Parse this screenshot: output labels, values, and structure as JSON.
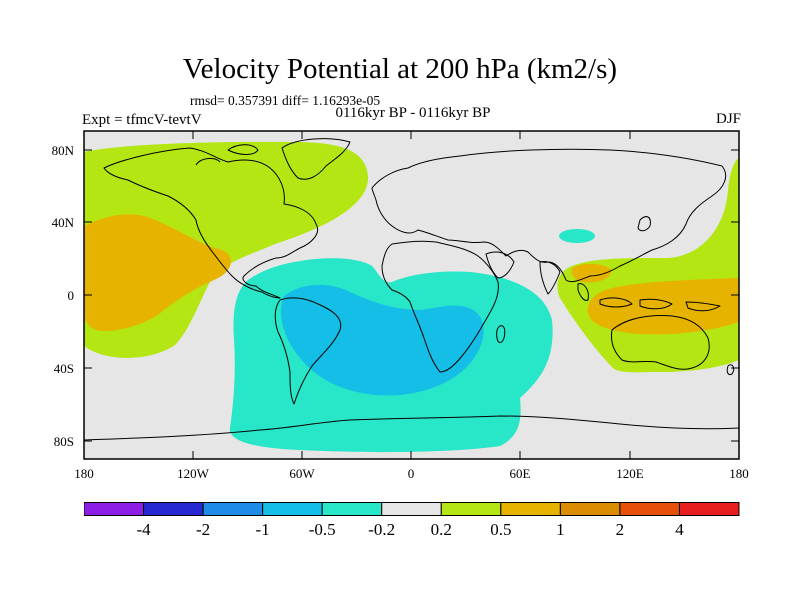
{
  "title": "Velocity Potential at 200 hPa (km2/s)",
  "stats": "rmsd= 0.357391  diff= 1.16293e-05",
  "subtitle": "0116kyr BP - 0116kyr BP",
  "left_label": "Expt = tfmcV-tevtV",
  "right_label": "DJF",
  "lat_ticks": [
    "80N",
    "40N",
    "0",
    "40S",
    "80S"
  ],
  "lon_ticks": [
    "180",
    "120W",
    "60W",
    "0",
    "60E",
    "120E",
    "180"
  ],
  "colorbar": {
    "colors": [
      "#8c1ee6",
      "#2828d2",
      "#1e8ce6",
      "#14bee6",
      "#28e6c8",
      "#e6e6e6",
      "#b4e614",
      "#e6b400",
      "#dc8c00",
      "#e6500a",
      "#e61e1e"
    ],
    "labels": [
      "-4",
      "-2",
      "-1",
      "-0.5",
      "-0.2",
      "0.2",
      "0.5",
      "1",
      "2",
      "4"
    ]
  },
  "map_colors": {
    "ocean_background": "#e6e6e6",
    "positive_light": "#b4e614",
    "positive_medium": "#e6b400",
    "negative_light": "#28e6c8",
    "negative_medium": "#14bee6",
    "coastline": "#000000"
  }
}
